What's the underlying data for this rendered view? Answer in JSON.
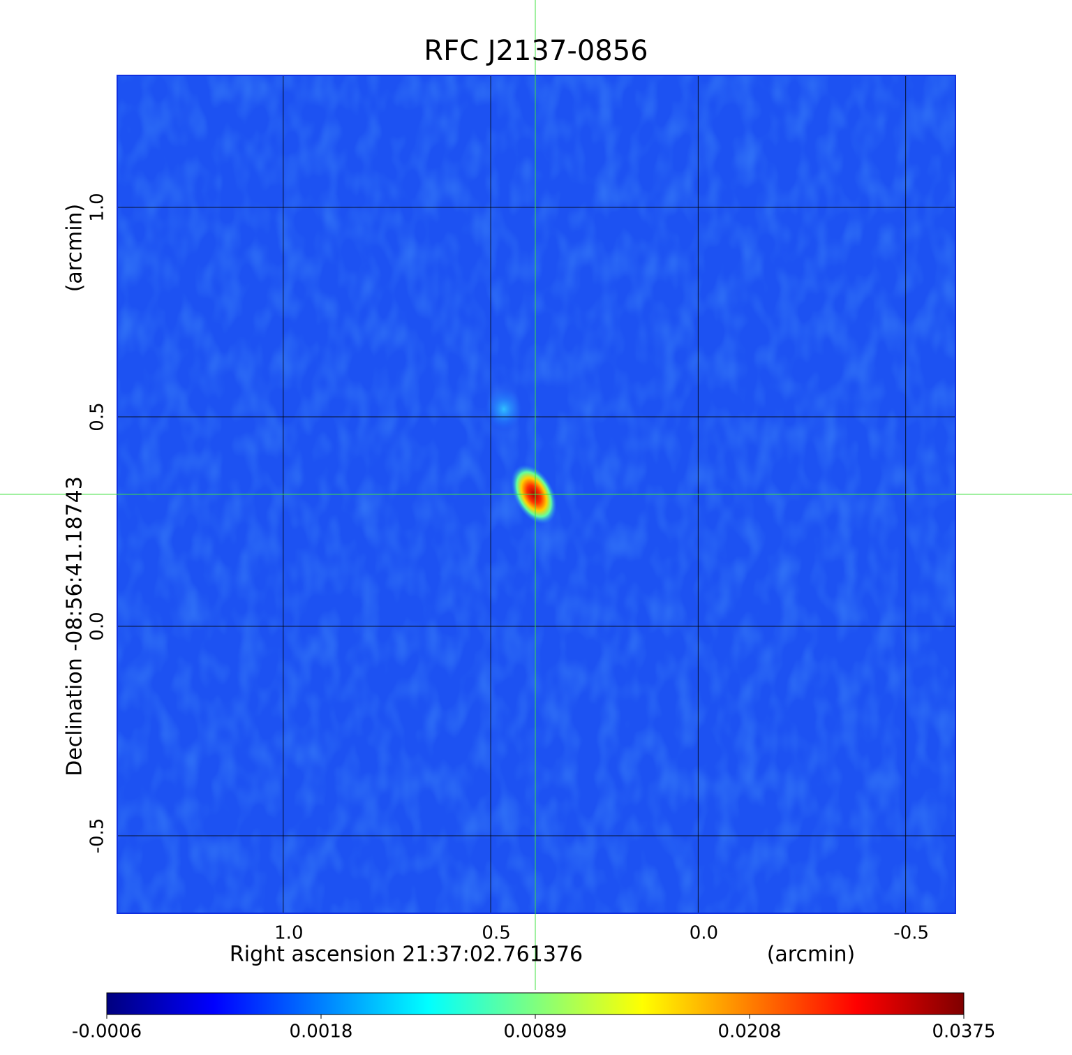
{
  "chart_data": {
    "type": "image",
    "title": "RFC J2137-0856",
    "title_color": "#0a10d0",
    "xlabel": "Right ascension  21:37:02.761376",
    "xunit": "(arcmin)",
    "ylabel": "Declination  -08:56:41.18743",
    "yunit": "(arcmin)",
    "xlim": [
      1.4,
      -0.62
    ],
    "ylim": [
      -0.685,
      1.315
    ],
    "xticks": [
      {
        "value": 1,
        "label": "1.0"
      },
      0.5,
      {
        "value": 0,
        "label": "0.0"
      },
      -0.5
    ],
    "yticks": [
      {
        "value": 1,
        "label": "1.0"
      },
      0.5,
      {
        "value": 0,
        "label": "0.0"
      },
      -0.5
    ],
    "grid": true,
    "colorbar": {
      "lim": [
        -0.0006,
        0.0375
      ],
      "ticks": [
        -0.0006,
        0.0018,
        0.0089,
        0.0208,
        0.0375
      ],
      "colormap": "jet"
    }
  }
}
